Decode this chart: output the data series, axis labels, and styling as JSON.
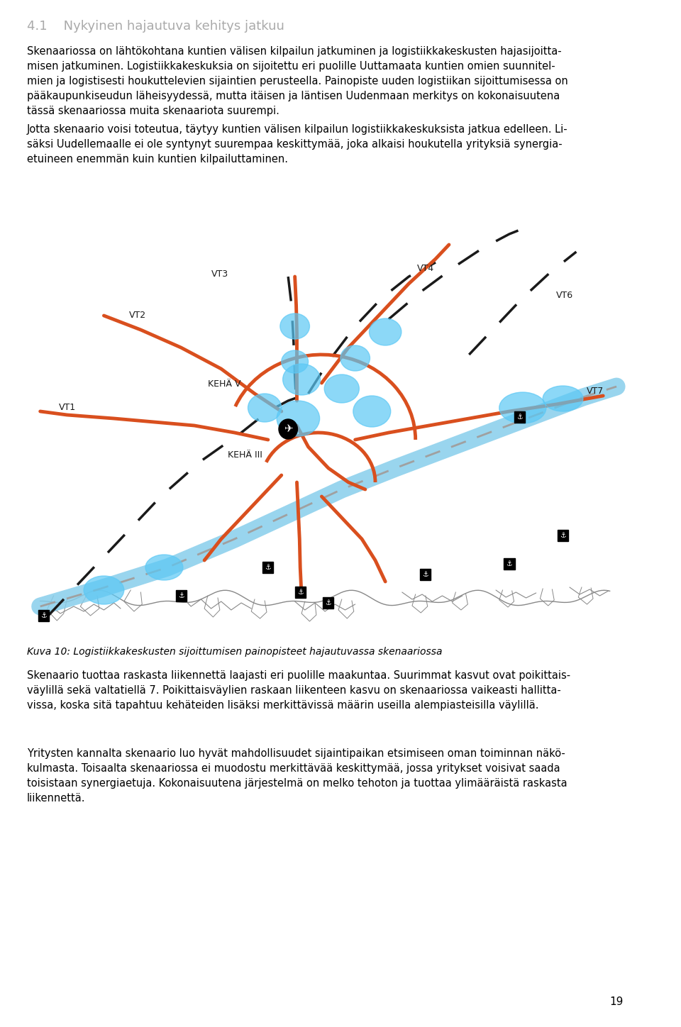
{
  "title": "4.1    Nykyinen hajautuva kehitys jatkuu",
  "title_color": "#aaaaaa",
  "title_fontsize": 13,
  "body_fontsize": 10.5,
  "caption_fontsize": 10,
  "page_number": "19",
  "background_color": "#ffffff",
  "text_color": "#000000",
  "paragraph1": "Skenaariossa on lähtökohtana kuntien välisen kilpailun jatkuminen ja logistiikkakeskusten hajasijoitta-\nmisen jatkuminen. Logistiikkakeskuksia on sijoitettu eri puolille Uuttamaata kuntien omien suunnitel-\nmien ja logistisesti houkuttelevien sijaintien perusteella. Painopiste uuden logistiikan sijoittumisessa on\npääkaupunkiseudun läheisyydessä, mutta itäisen ja läntisen Uudenmaan merkitys on kokonaisuutena\ntässä skenaariossa muita skenaariota suurempi.",
  "paragraph2": "Jotta skenaario voisi toteutua, täytyy kuntien välisen kilpailun logistiikkakeskuksista jatkua edelleen. Li-\nsäksi Uudellemaalle ei ole syntynyt suurempaa keskittymää, joka alkaisi houkutella yrityksiä synergia-\netuineen enemmän kuin kuntien kilpailuttaminen.",
  "caption": "Kuva 10: Logistiikkakeskusten sijoittumisen painopisteet hajautuvassa skenaariossa",
  "paragraph3": "Skenaario tuottaa raskasta liikennettä laajasti eri puolille maakuntaa. Suurimmat kasvut ovat poikittais-\nväylillä sekä valtatiellä 7. Poikittaisväylien raskaan liikenteen kasvu on skenaariossa vaikeasti hallitta-\nvissa, koska sitä tapahtuu kehäteiden lisäksi merkittävissä määrin useilla alempiasteisilla väylillä.",
  "paragraph4": "Yritysten kannalta skenaario luo hyvät mahdollisuudet sijaintipaikan etsimiseen oman toiminnan näkö-\nkulmasta. Toisaalta skenaariossa ei muodostu merkittävää keskittymää, jossa yritykset voisivat saada\ntoisistaan synergiaetuja. Kokonaisuutena järjestelmä on melko tehoton ja tuottaa ylimääräistä raskasta\nliikennettä.",
  "road_color": "#d94f1e",
  "highway_color": "#87CEEB",
  "dashed_color": "#1a1a1a",
  "blue_spot_color": "#5bc8f5",
  "coast_color": "#cccccc"
}
